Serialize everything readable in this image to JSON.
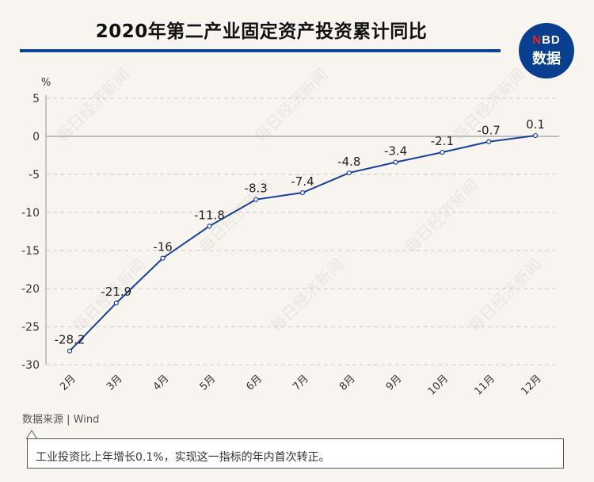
{
  "header": {
    "title": "2020年第二产业固定资产投资累计同比",
    "logo": {
      "brand_red": "N",
      "brand_rest": "BD",
      "subtitle": "数据"
    }
  },
  "colors": {
    "accent": "#0a4596",
    "line": "#1a3f9a",
    "logo_bg": "#0a3f8f",
    "logo_red": "#e8242b",
    "background": "#f8f5f0"
  },
  "watermark": "每日经济新闻",
  "chart_data": {
    "type": "line",
    "title": "2020年第二产业固定资产投资累计同比",
    "xlabel": "",
    "ylabel": "%",
    "categories": [
      "2月",
      "3月",
      "4月",
      "5月",
      "6月",
      "7月",
      "8月",
      "9月",
      "10月",
      "11月",
      "12月"
    ],
    "values": [
      -28.2,
      -21.9,
      -16,
      -11.8,
      -8.3,
      -7.4,
      -4.8,
      -3.4,
      -2.1,
      -0.7,
      0.1
    ],
    "data_labels": [
      "-28.2",
      "-21.9",
      "-16",
      "-11.8",
      "-8.3",
      "-7.4",
      "-4.8",
      "-3.4",
      "-2.1",
      "-0.7",
      "0.1"
    ],
    "ylim": [
      -30,
      5
    ],
    "yticks": [
      5,
      0,
      -5,
      -10,
      -15,
      -20,
      -25,
      -30
    ],
    "grid": true,
    "legend": null
  },
  "footer": {
    "source": "数据来源 | Wind",
    "note": "工业投资比上年增长0.1%，实现这一指标的年内首次转正。"
  }
}
